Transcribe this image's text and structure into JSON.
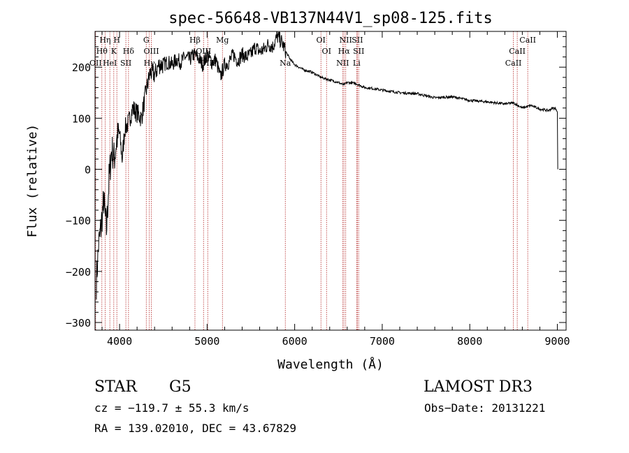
{
  "chart_data": {
    "type": "line",
    "title": "spec-56648-VB137N44V1_sp08-125.fits",
    "xlabel": "Wavelength (Å)",
    "ylabel": "Flux (relative)",
    "xlim": [
      3720,
      9100
    ],
    "ylim": [
      -315,
      270
    ],
    "x_ticks": [
      4000,
      5000,
      6000,
      7000,
      8000,
      9000
    ],
    "y_ticks": [
      -300,
      -200,
      -100,
      0,
      100,
      200
    ],
    "x_tick_labels": [
      "4000",
      "5000",
      "6000",
      "7000",
      "8000",
      "9000"
    ],
    "y_tick_labels": [
      "−300",
      "−200",
      "−100",
      "0",
      "100",
      "200"
    ],
    "series": [
      {
        "name": "flux",
        "x": [
          3735,
          3760,
          3790,
          3820,
          3850,
          3880,
          3910,
          3940,
          3970,
          4000,
          4030,
          4060,
          4100,
          4150,
          4200,
          4250,
          4300,
          4350,
          4400,
          4450,
          4500,
          4550,
          4600,
          4650,
          4700,
          4750,
          4800,
          4850,
          4900,
          4950,
          5000,
          5050,
          5100,
          5150,
          5200,
          5250,
          5300,
          5350,
          5400,
          5450,
          5500,
          5550,
          5600,
          5650,
          5700,
          5750,
          5800,
          5850,
          5900,
          5950,
          6000,
          6100,
          6200,
          6300,
          6400,
          6500,
          6560,
          6600,
          6700,
          6800,
          6900,
          7000,
          7200,
          7400,
          7600,
          7800,
          8000,
          8200,
          8400,
          8500,
          8600,
          8700,
          8800,
          8900,
          8950,
          8990,
          9000,
          9005
        ],
        "y": [
          -220,
          -150,
          -110,
          -60,
          -120,
          -20,
          40,
          20,
          60,
          70,
          20,
          80,
          90,
          120,
          110,
          100,
          150,
          190,
          185,
          205,
          205,
          210,
          205,
          215,
          210,
          220,
          215,
          225,
          218,
          205,
          225,
          210,
          215,
          180,
          205,
          210,
          225,
          212,
          225,
          220,
          225,
          240,
          230,
          235,
          245,
          240,
          260,
          250,
          230,
          215,
          205,
          195,
          190,
          180,
          175,
          170,
          165,
          170,
          168,
          160,
          158,
          155,
          150,
          148,
          140,
          142,
          135,
          132,
          128,
          130,
          120,
          125,
          118,
          115,
          120,
          118,
          110,
          0
        ]
      }
    ],
    "lines": [
      {
        "name": "OII",
        "x": 3727,
        "row": 3
      },
      {
        "name": "Hθ",
        "x": 3798,
        "row": 2
      },
      {
        "name": "Hη",
        "x": 3835,
        "row": 1
      },
      {
        "name": "HeI",
        "x": 3889,
        "row": 3
      },
      {
        "name": "K",
        "x": 3934,
        "row": 2
      },
      {
        "name": "H",
        "x": 3969,
        "row": 1
      },
      {
        "name": "SII",
        "x": 4072,
        "row": 3
      },
      {
        "name": "Hδ",
        "x": 4102,
        "row": 2
      },
      {
        "name": "G",
        "x": 4305,
        "row": 1
      },
      {
        "name": "OIII",
        "x": 4363,
        "row": 2
      },
      {
        "name": "Hγ",
        "x": 4340,
        "row": 3
      },
      {
        "name": "Hβ",
        "x": 4861,
        "row": 1
      },
      {
        "name": "OIII",
        "x": 4959,
        "row": 2
      },
      {
        "name": "OIII",
        "x": 5007,
        "row": 3
      },
      {
        "name": "Mg",
        "x": 5175,
        "row": 1
      },
      {
        "name": "Na",
        "x": 5893,
        "row": 3
      },
      {
        "name": "OI",
        "x": 6300,
        "row": 1
      },
      {
        "name": "OI",
        "x": 6364,
        "row": 2
      },
      {
        "name": "NII",
        "x": 6548,
        "row": 3
      },
      {
        "name": "Hα",
        "x": 6563,
        "row": 2
      },
      {
        "name": "NII",
        "x": 6583,
        "row": 1
      },
      {
        "name": "Li",
        "x": 6708,
        "row": 3
      },
      {
        "name": "SII",
        "x": 6716,
        "row": 1
      },
      {
        "name": "SII",
        "x": 6731,
        "row": 2
      },
      {
        "name": "CaII",
        "x": 8498,
        "row": 3
      },
      {
        "name": "CaII",
        "x": 8542,
        "row": 2
      },
      {
        "name": "CaII",
        "x": 8662,
        "row": 1
      }
    ]
  },
  "info": {
    "class": "STAR",
    "subclass": "G5",
    "survey": "LAMOST DR3",
    "cz": "cz = −119.7 ± 55.3 km/s",
    "obs_date": "Obs−Date: 20131221",
    "coords": "RA = 139.02010, DEC =  43.67829"
  },
  "colors": {
    "spectrum": "#000000",
    "line_marker": "#b22222",
    "axis": "#000000"
  }
}
